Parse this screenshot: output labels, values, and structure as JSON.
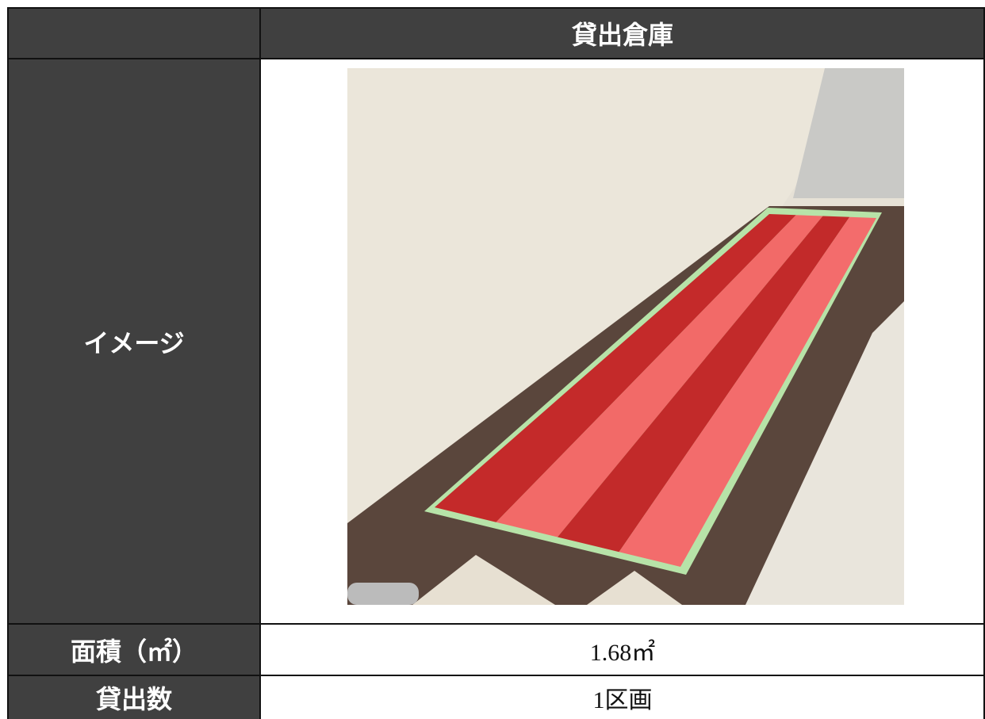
{
  "header": {
    "title": "貸出倉庫"
  },
  "rows": [
    {
      "label": "イメージ"
    },
    {
      "label": "面積（㎡）",
      "value": "1.68㎡"
    },
    {
      "label": "貸出数",
      "value": "1区画"
    }
  ]
}
